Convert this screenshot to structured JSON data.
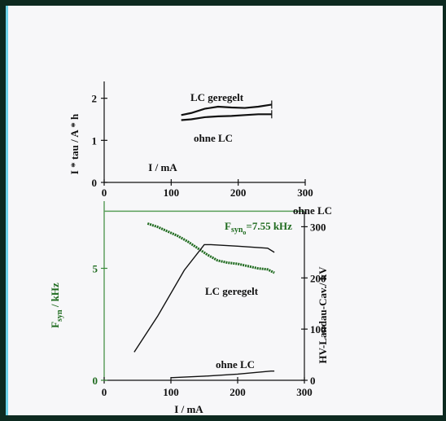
{
  "colors": {
    "black": "#111111",
    "green": "#1f6b1f",
    "green_light": "#3a8a3a",
    "line_green": "#5aa05a"
  },
  "chart_data": [
    {
      "type": "line",
      "xlabel": "I / mA",
      "ylabel": "I * tau / A * h",
      "xlim": [
        0,
        300
      ],
      "ylim": [
        0,
        2.4
      ],
      "xticks": [
        "0",
        "100",
        "200",
        "300"
      ],
      "yticks": [
        "0",
        "1",
        "2"
      ],
      "series": [
        {
          "name": "LC geregelt",
          "x": [
            115,
            130,
            150,
            170,
            190,
            210,
            230,
            250
          ],
          "y": [
            1.6,
            1.65,
            1.75,
            1.8,
            1.78,
            1.77,
            1.8,
            1.85
          ]
        },
        {
          "name": "ohne LC",
          "x": [
            115,
            130,
            150,
            170,
            190,
            210,
            230,
            250
          ],
          "y": [
            1.48,
            1.5,
            1.55,
            1.57,
            1.58,
            1.6,
            1.62,
            1.62
          ]
        }
      ]
    },
    {
      "type": "line",
      "xlabel": "I / mA",
      "ylabel": "F_syn / kHz",
      "ylabel2": "HV-Landau-Cav./ kV",
      "xlim": [
        0,
        300
      ],
      "ylim": [
        0,
        8
      ],
      "ylim2": [
        0,
        350
      ],
      "xticks": [
        "0",
        "100",
        "200",
        "300"
      ],
      "yticks": [
        "0",
        "5"
      ],
      "yticks2": [
        "0",
        "100",
        "200",
        "300"
      ],
      "annotations": [
        "ohne LC",
        "LC geregelt",
        "ohne LC"
      ],
      "reference_label": "F_syn_o=7.55 kHz",
      "series": [
        {
          "name": "ohne LC",
          "axis": "left",
          "x": [
            0,
            300
          ],
          "y": [
            7.55,
            7.55
          ]
        },
        {
          "axis": "left",
          "x": [
            65,
            80,
            95,
            110,
            125,
            140,
            155,
            170,
            185,
            200,
            215,
            230,
            245,
            255
          ],
          "y": [
            7.0,
            6.85,
            6.65,
            6.45,
            6.2,
            5.9,
            5.6,
            5.35,
            5.25,
            5.2,
            5.1,
            5.0,
            4.95,
            4.8
          ]
        },
        {
          "name": "LC geregelt",
          "axis": "right",
          "x": [
            45,
            80,
            120,
            150,
            160,
            200,
            245,
            255
          ],
          "y": [
            55,
            125,
            215,
            265,
            265,
            262,
            258,
            250
          ]
        },
        {
          "name": "ohne LC",
          "axis": "right",
          "x": [
            100,
            150,
            200,
            250,
            255
          ],
          "y": [
            5,
            8,
            12,
            18,
            18
          ]
        }
      ]
    }
  ],
  "labels": {
    "top_ylabel": "I * tau / A * h",
    "top_xlabel": "I / mA",
    "top_series1": "LC geregelt",
    "top_series2": "ohne LC",
    "bot_xlabel": "I / mA",
    "bot_ylabel_main": "F",
    "bot_ylabel_sub": "syn",
    "bot_ylabel_unit": " / kHz",
    "bot_ylabel2": "HV-Landau-Cav./ kV",
    "ref_line_label": "ohne LC",
    "ref_value_main": "F",
    "ref_value_sub": "syn",
    "ref_value_sub2": "o",
    "ref_value_rest": "=7.55 kHz",
    "lc_label": "LC geregelt",
    "ohne_label": "ohne LC"
  }
}
